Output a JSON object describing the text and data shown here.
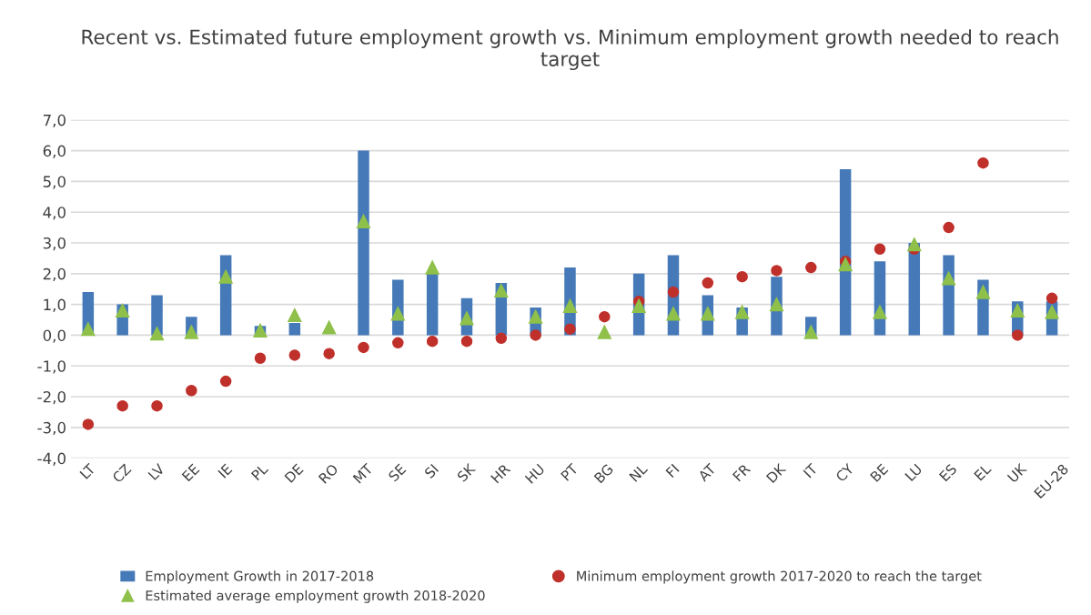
{
  "chart_data": {
    "type": "bar",
    "title": "Recent vs. Estimated future employment growth vs. Minimum employment growth needed to reach target",
    "categories": [
      "LT",
      "CZ",
      "LV",
      "EE",
      "IE",
      "PL",
      "DE",
      "RO",
      "MT",
      "SE",
      "SI",
      "SK",
      "HR",
      "HU",
      "PT",
      "BG",
      "NL",
      "FI",
      "AT",
      "FR",
      "DK",
      "IT",
      "CY",
      "BE",
      "LU",
      "ES",
      "EL",
      "UK",
      "EU-28"
    ],
    "series": [
      {
        "name": "Employment Growth in 2017-2018",
        "color": "#4579b8",
        "values": [
          1.4,
          1.0,
          1.3,
          0.6,
          2.6,
          0.3,
          0.4,
          null,
          6.0,
          1.8,
          2.0,
          1.2,
          1.7,
          0.9,
          2.2,
          null,
          2.0,
          2.6,
          1.3,
          0.9,
          1.9,
          0.6,
          5.4,
          2.4,
          3.0,
          2.6,
          1.8,
          1.1,
          1.1
        ]
      },
      {
        "name": "Minimum employment growth 2017-2020 to reach the target",
        "type": "scatter",
        "marker": "circle",
        "color": "#c0302b",
        "values": [
          -2.9,
          -2.3,
          -2.3,
          -1.8,
          -1.5,
          -0.75,
          -0.65,
          -0.6,
          -0.4,
          -0.25,
          -0.2,
          -0.2,
          -0.1,
          0.0,
          0.2,
          0.6,
          1.1,
          1.4,
          1.7,
          1.9,
          2.1,
          2.2,
          2.4,
          2.8,
          2.8,
          3.5,
          5.6,
          0.0,
          1.2
        ]
      },
      {
        "name": "Estimated average employment growth 2018-2020",
        "type": "scatter",
        "marker": "triangle",
        "color": "#8fc04a",
        "values": [
          0.2,
          0.8,
          0.05,
          0.1,
          1.9,
          0.15,
          0.65,
          0.25,
          3.7,
          0.7,
          2.2,
          0.55,
          1.45,
          0.6,
          0.95,
          0.1,
          0.95,
          0.7,
          0.7,
          0.75,
          1.0,
          0.1,
          2.3,
          0.75,
          2.95,
          1.85,
          1.4,
          0.8,
          0.75
        ]
      }
    ],
    "ylim": [
      -4,
      7
    ],
    "yticks": [
      {
        "value": -4,
        "label": "-4,0"
      },
      {
        "value": -3,
        "label": "-3,0"
      },
      {
        "value": -2,
        "label": "-2,0"
      },
      {
        "value": -1,
        "label": "-1,0"
      },
      {
        "value": 0,
        "label": "0,0"
      },
      {
        "value": 1,
        "label": "1,0"
      },
      {
        "value": 2,
        "label": "2,0"
      },
      {
        "value": 3,
        "label": "3,0"
      },
      {
        "value": 4,
        "label": "4,0"
      },
      {
        "value": 5,
        "label": "5,0"
      },
      {
        "value": 6,
        "label": "6,0"
      },
      {
        "value": 7,
        "label": "7,0"
      }
    ],
    "grid": "y",
    "legend": "bottom"
  }
}
